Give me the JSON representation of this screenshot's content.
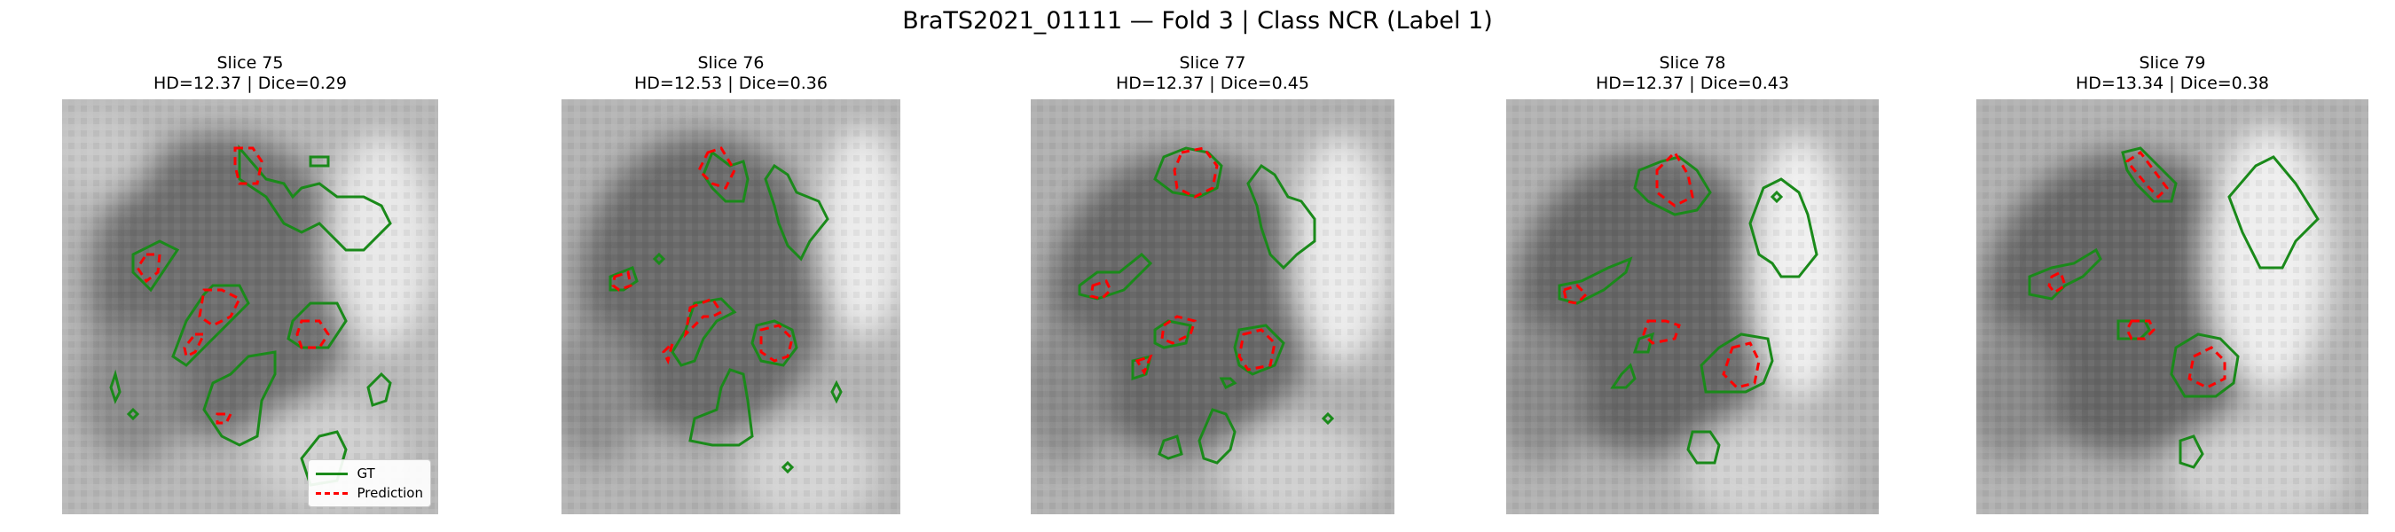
{
  "figure": {
    "title": "BraTS2021_01111 — Fold 3 | Class NCR (Label 1)"
  },
  "colors": {
    "gt": "#1a8a1a",
    "prediction": "#ff0000"
  },
  "chart_data": [
    {
      "type": "image",
      "title": "Slice 75",
      "subtitle": "HD=12.37 | Dice=0.29",
      "slice": 75,
      "hd": 12.37,
      "dice": 0.29,
      "legend": [
        {
          "label": "GT",
          "style": "solid",
          "color": "#1a8a1a"
        },
        {
          "label": "Prediction",
          "style": "dashed",
          "color": "#ff0000"
        }
      ],
      "legend_position": "lower right"
    },
    {
      "type": "image",
      "title": "Slice 76",
      "subtitle": "HD=12.53 | Dice=0.36",
      "slice": 76,
      "hd": 12.53,
      "dice": 0.36
    },
    {
      "type": "image",
      "title": "Slice 77",
      "subtitle": "HD=12.37 | Dice=0.45",
      "slice": 77,
      "hd": 12.37,
      "dice": 0.45
    },
    {
      "type": "image",
      "title": "Slice 78",
      "subtitle": "HD=12.37 | Dice=0.43",
      "slice": 78,
      "hd": 12.37,
      "dice": 0.43
    },
    {
      "type": "image",
      "title": "Slice 79",
      "subtitle": "HD=13.34 | Dice=0.38",
      "slice": 79,
      "hd": 13.34,
      "dice": 0.38
    }
  ]
}
